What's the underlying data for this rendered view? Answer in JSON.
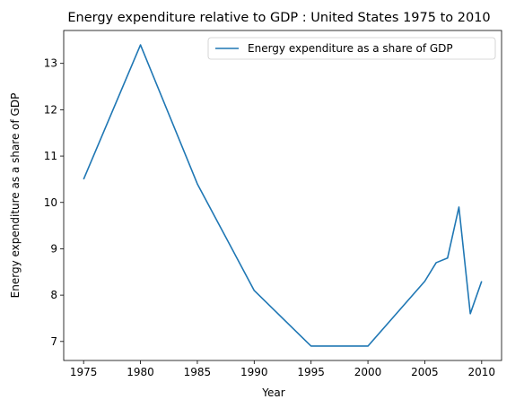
{
  "chart_data": {
    "type": "line",
    "title": "Energy expenditure relative to GDP : United States 1975 to 2010",
    "xlabel": "Year",
    "ylabel": "Energy expenditure as a share of GDP",
    "xlim": [
      1973.25,
      2011.75
    ],
    "ylim": [
      6.59,
      13.71
    ],
    "x_ticks": [
      1975,
      1980,
      1985,
      1990,
      1995,
      2000,
      2005,
      2010
    ],
    "y_ticks": [
      7,
      8,
      9,
      10,
      11,
      12,
      13
    ],
    "grid": false,
    "legend_position": "top-right",
    "series": [
      {
        "name": "Energy expenditure as a share of GDP",
        "color": "#1f77b4",
        "x": [
          1975,
          1980,
          1985,
          1990,
          1995,
          2000,
          2005,
          2006,
          2007,
          2008,
          2009,
          2010
        ],
        "y": [
          10.5,
          13.4,
          10.4,
          8.1,
          6.9,
          6.9,
          8.3,
          8.7,
          8.8,
          9.9,
          7.6,
          8.3
        ]
      }
    ]
  }
}
